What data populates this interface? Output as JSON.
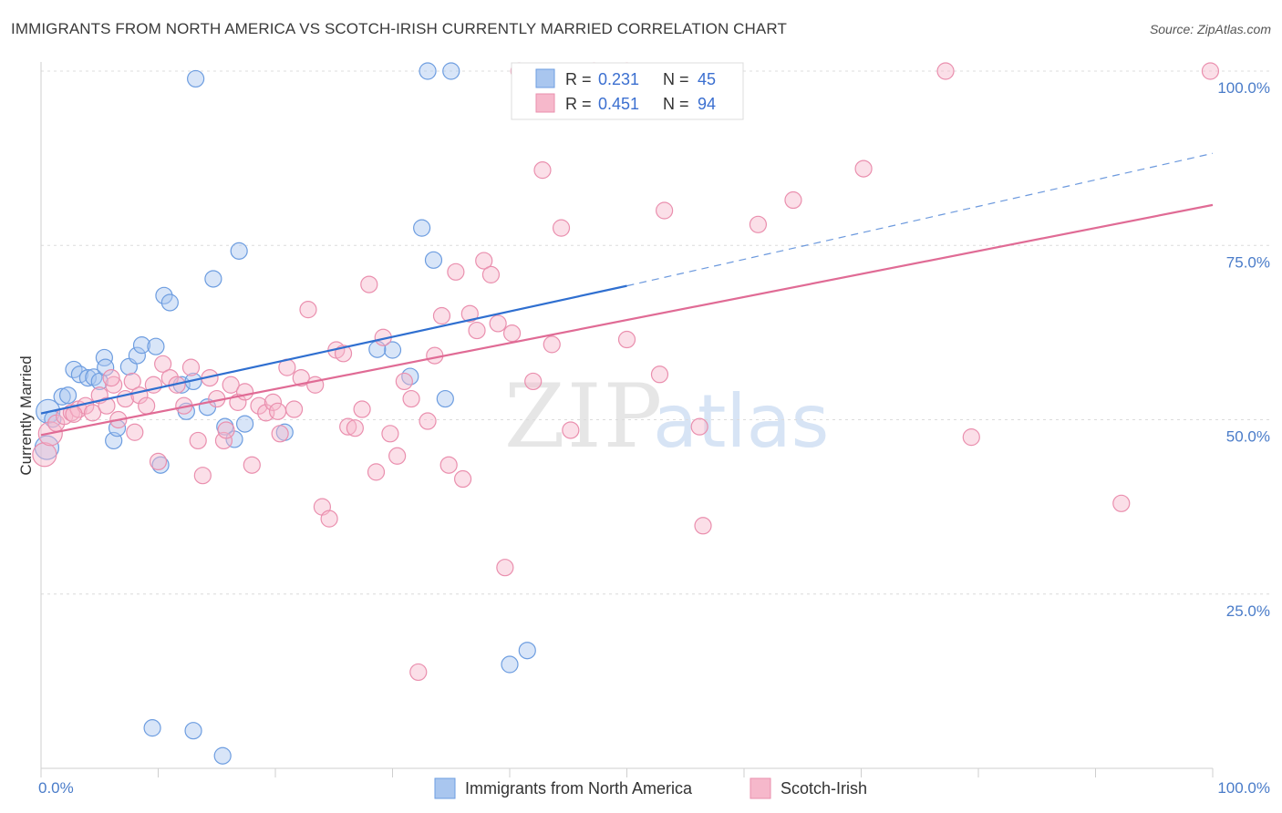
{
  "title": "IMMIGRANTS FROM NORTH AMERICA VS SCOTCH-IRISH CURRENTLY MARRIED CORRELATION CHART",
  "source": "Source: ZipAtlas.com",
  "watermark": {
    "zip": "ZIP",
    "atlas": "atlas"
  },
  "colors": {
    "blue_fill": "#a9c6ef",
    "blue_stroke": "#6d9de0",
    "blue_line": "#2f6fd0",
    "pink_fill": "#f6b8cb",
    "pink_stroke": "#ea8fae",
    "pink_line": "#e06b95",
    "grid": "#dcdcdc",
    "tick_label": "#4a7cc9"
  },
  "legend": {
    "r_label": "R =",
    "n_label": "N =",
    "items": [
      {
        "r": "0.231",
        "n": "45"
      },
      {
        "r": "0.451",
        "n": "94"
      }
    ]
  },
  "chart_data": {
    "type": "scatter",
    "ylabel": "Currently Married",
    "x_ticks": [
      "0.0%",
      "100.0%"
    ],
    "y_ticks": [
      "25.0%",
      "50.0%",
      "75.0%",
      "100.0%"
    ],
    "xlim": [
      0,
      100
    ],
    "ylim": [
      0,
      100
    ],
    "grid": "horizontal dashed",
    "legend_position": "top-center",
    "series": [
      {
        "name": "Immigrants from North America",
        "color": "#a9c6ef",
        "trend": {
          "x0": 0,
          "y0": 50.9,
          "x1": 50,
          "y1": 69.2,
          "dashed_to": {
            "x": 100,
            "y": 88.2
          }
        },
        "points": [
          [
            0.5,
            46.0
          ],
          [
            0.6,
            51.2
          ],
          [
            1.0,
            50.1
          ],
          [
            1.8,
            53.3
          ],
          [
            2.3,
            53.5
          ],
          [
            2.8,
            57.2
          ],
          [
            3.3,
            56.5
          ],
          [
            4.0,
            56.0
          ],
          [
            4.5,
            56.1
          ],
          [
            5.0,
            55.5
          ],
          [
            5.4,
            58.9
          ],
          [
            5.5,
            57.5
          ],
          [
            6.2,
            47.0
          ],
          [
            6.5,
            48.8
          ],
          [
            7.5,
            57.6
          ],
          [
            8.2,
            59.2
          ],
          [
            8.6,
            60.7
          ],
          [
            9.8,
            60.5
          ],
          [
            10.2,
            43.5
          ],
          [
            10.5,
            67.8
          ],
          [
            11.0,
            66.8
          ],
          [
            12.0,
            55.0
          ],
          [
            12.4,
            51.2
          ],
          [
            13.0,
            55.5
          ],
          [
            13.2,
            98.9
          ],
          [
            14.2,
            51.8
          ],
          [
            14.7,
            70.2
          ],
          [
            15.7,
            49.0
          ],
          [
            16.5,
            47.2
          ],
          [
            16.9,
            74.2
          ],
          [
            17.4,
            49.4
          ],
          [
            20.8,
            48.2
          ],
          [
            30.0,
            60.0
          ],
          [
            31.5,
            56.2
          ],
          [
            28.7,
            60.1
          ],
          [
            32.5,
            77.5
          ],
          [
            33.0,
            100.0
          ],
          [
            33.5,
            72.9
          ],
          [
            34.5,
            53.0
          ],
          [
            35.0,
            100.0
          ],
          [
            40.0,
            14.9
          ],
          [
            41.5,
            16.9
          ],
          [
            13.0,
            5.4
          ],
          [
            9.5,
            5.8
          ],
          [
            15.5,
            1.8
          ]
        ]
      },
      {
        "name": "Scotch-Irish",
        "color": "#f6b8cb",
        "trend": {
          "x0": 0,
          "y0": 47.8,
          "x1": 100,
          "y1": 80.8
        },
        "points": [
          [
            0.3,
            45.0
          ],
          [
            0.8,
            48.0
          ],
          [
            1.3,
            49.5
          ],
          [
            2.0,
            50.5
          ],
          [
            2.6,
            51.0
          ],
          [
            3.2,
            51.5
          ],
          [
            3.8,
            52.0
          ],
          [
            4.4,
            51.0
          ],
          [
            5.0,
            53.5
          ],
          [
            5.6,
            52.0
          ],
          [
            6.2,
            55.0
          ],
          [
            6.6,
            50.0
          ],
          [
            7.2,
            53.0
          ],
          [
            7.8,
            55.5
          ],
          [
            8.4,
            53.5
          ],
          [
            9.0,
            52.0
          ],
          [
            9.6,
            55.0
          ],
          [
            10.4,
            58.0
          ],
          [
            11.0,
            56.0
          ],
          [
            11.6,
            55.0
          ],
          [
            12.2,
            52.0
          ],
          [
            12.8,
            57.5
          ],
          [
            13.4,
            47.0
          ],
          [
            13.8,
            42.0
          ],
          [
            14.4,
            56.0
          ],
          [
            15.0,
            53.0
          ],
          [
            15.6,
            47.0
          ],
          [
            16.2,
            55.0
          ],
          [
            16.8,
            52.5
          ],
          [
            17.4,
            54.0
          ],
          [
            18.0,
            43.5
          ],
          [
            18.6,
            52.0
          ],
          [
            19.2,
            51.0
          ],
          [
            19.8,
            52.5
          ],
          [
            20.4,
            48.0
          ],
          [
            21.0,
            57.5
          ],
          [
            21.6,
            51.5
          ],
          [
            22.2,
            56.0
          ],
          [
            22.8,
            65.8
          ],
          [
            23.4,
            55.0
          ],
          [
            24.0,
            37.5
          ],
          [
            24.6,
            35.8
          ],
          [
            25.2,
            60.0
          ],
          [
            25.8,
            59.5
          ],
          [
            26.2,
            49.0
          ],
          [
            26.8,
            48.8
          ],
          [
            27.4,
            51.5
          ],
          [
            28.0,
            69.4
          ],
          [
            28.6,
            42.5
          ],
          [
            29.2,
            61.8
          ],
          [
            29.8,
            48.0
          ],
          [
            30.4,
            44.8
          ],
          [
            31.0,
            55.5
          ],
          [
            31.6,
            53.0
          ],
          [
            32.2,
            13.8
          ],
          [
            33.0,
            49.8
          ],
          [
            33.6,
            59.2
          ],
          [
            34.2,
            64.9
          ],
          [
            34.8,
            43.5
          ],
          [
            35.4,
            71.2
          ],
          [
            36.0,
            41.5
          ],
          [
            36.6,
            65.2
          ],
          [
            37.2,
            62.8
          ],
          [
            37.8,
            72.8
          ],
          [
            38.4,
            70.8
          ],
          [
            39.0,
            63.8
          ],
          [
            39.6,
            28.8
          ],
          [
            40.2,
            62.4
          ],
          [
            40.8,
            100.0
          ],
          [
            42.0,
            55.5
          ],
          [
            42.8,
            85.8
          ],
          [
            43.6,
            60.8
          ],
          [
            44.4,
            77.5
          ],
          [
            45.2,
            48.5
          ],
          [
            47.2,
            100.0
          ],
          [
            50.0,
            61.5
          ],
          [
            50.0,
            100.0
          ],
          [
            52.8,
            56.5
          ],
          [
            53.2,
            80.0
          ],
          [
            56.2,
            49.0
          ],
          [
            56.5,
            34.8
          ],
          [
            61.2,
            78.0
          ],
          [
            64.2,
            81.5
          ],
          [
            70.2,
            86.0
          ],
          [
            77.2,
            100.0
          ],
          [
            79.4,
            47.5
          ],
          [
            92.2,
            38.0
          ],
          [
            99.8,
            100.0
          ],
          [
            6.0,
            56.0
          ],
          [
            2.8,
            50.8
          ],
          [
            10.0,
            44.0
          ],
          [
            20.2,
            51.2
          ],
          [
            15.8,
            48.5
          ],
          [
            8.0,
            48.2
          ]
        ]
      }
    ]
  },
  "bottom_legend": [
    {
      "label": "Immigrants from North America"
    },
    {
      "label": "Scotch-Irish"
    }
  ]
}
